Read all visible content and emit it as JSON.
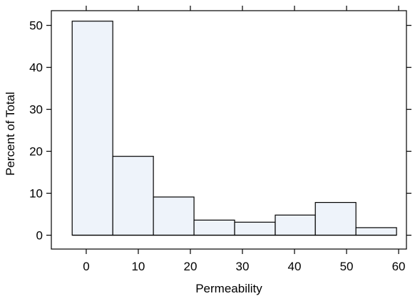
{
  "chart_data": {
    "type": "bar",
    "subtype": "histogram",
    "xlabel": "Permeability",
    "ylabel": "Percent of Total",
    "xlim": [
      -6.7,
      61.5
    ],
    "ylim": [
      -3.3,
      53.5
    ],
    "xticks": [
      0,
      10,
      20,
      30,
      40,
      50,
      60
    ],
    "yticks": [
      0,
      10,
      20,
      30,
      40,
      50
    ],
    "grid": false,
    "bins": [
      {
        "x0": -2.7,
        "x1": 5.1,
        "value": 51.0
      },
      {
        "x0": 5.1,
        "x1": 12.9,
        "value": 18.8
      },
      {
        "x0": 12.9,
        "x1": 20.7,
        "value": 9.1
      },
      {
        "x0": 20.7,
        "x1": 28.5,
        "value": 3.6
      },
      {
        "x0": 28.5,
        "x1": 36.3,
        "value": 3.1
      },
      {
        "x0": 36.3,
        "x1": 44.0,
        "value": 4.8
      },
      {
        "x0": 44.0,
        "x1": 51.8,
        "value": 7.8
      },
      {
        "x0": 51.8,
        "x1": 59.6,
        "value": 1.8
      }
    ],
    "bar_fill": "#eef3fa",
    "bar_stroke": "#000000"
  }
}
